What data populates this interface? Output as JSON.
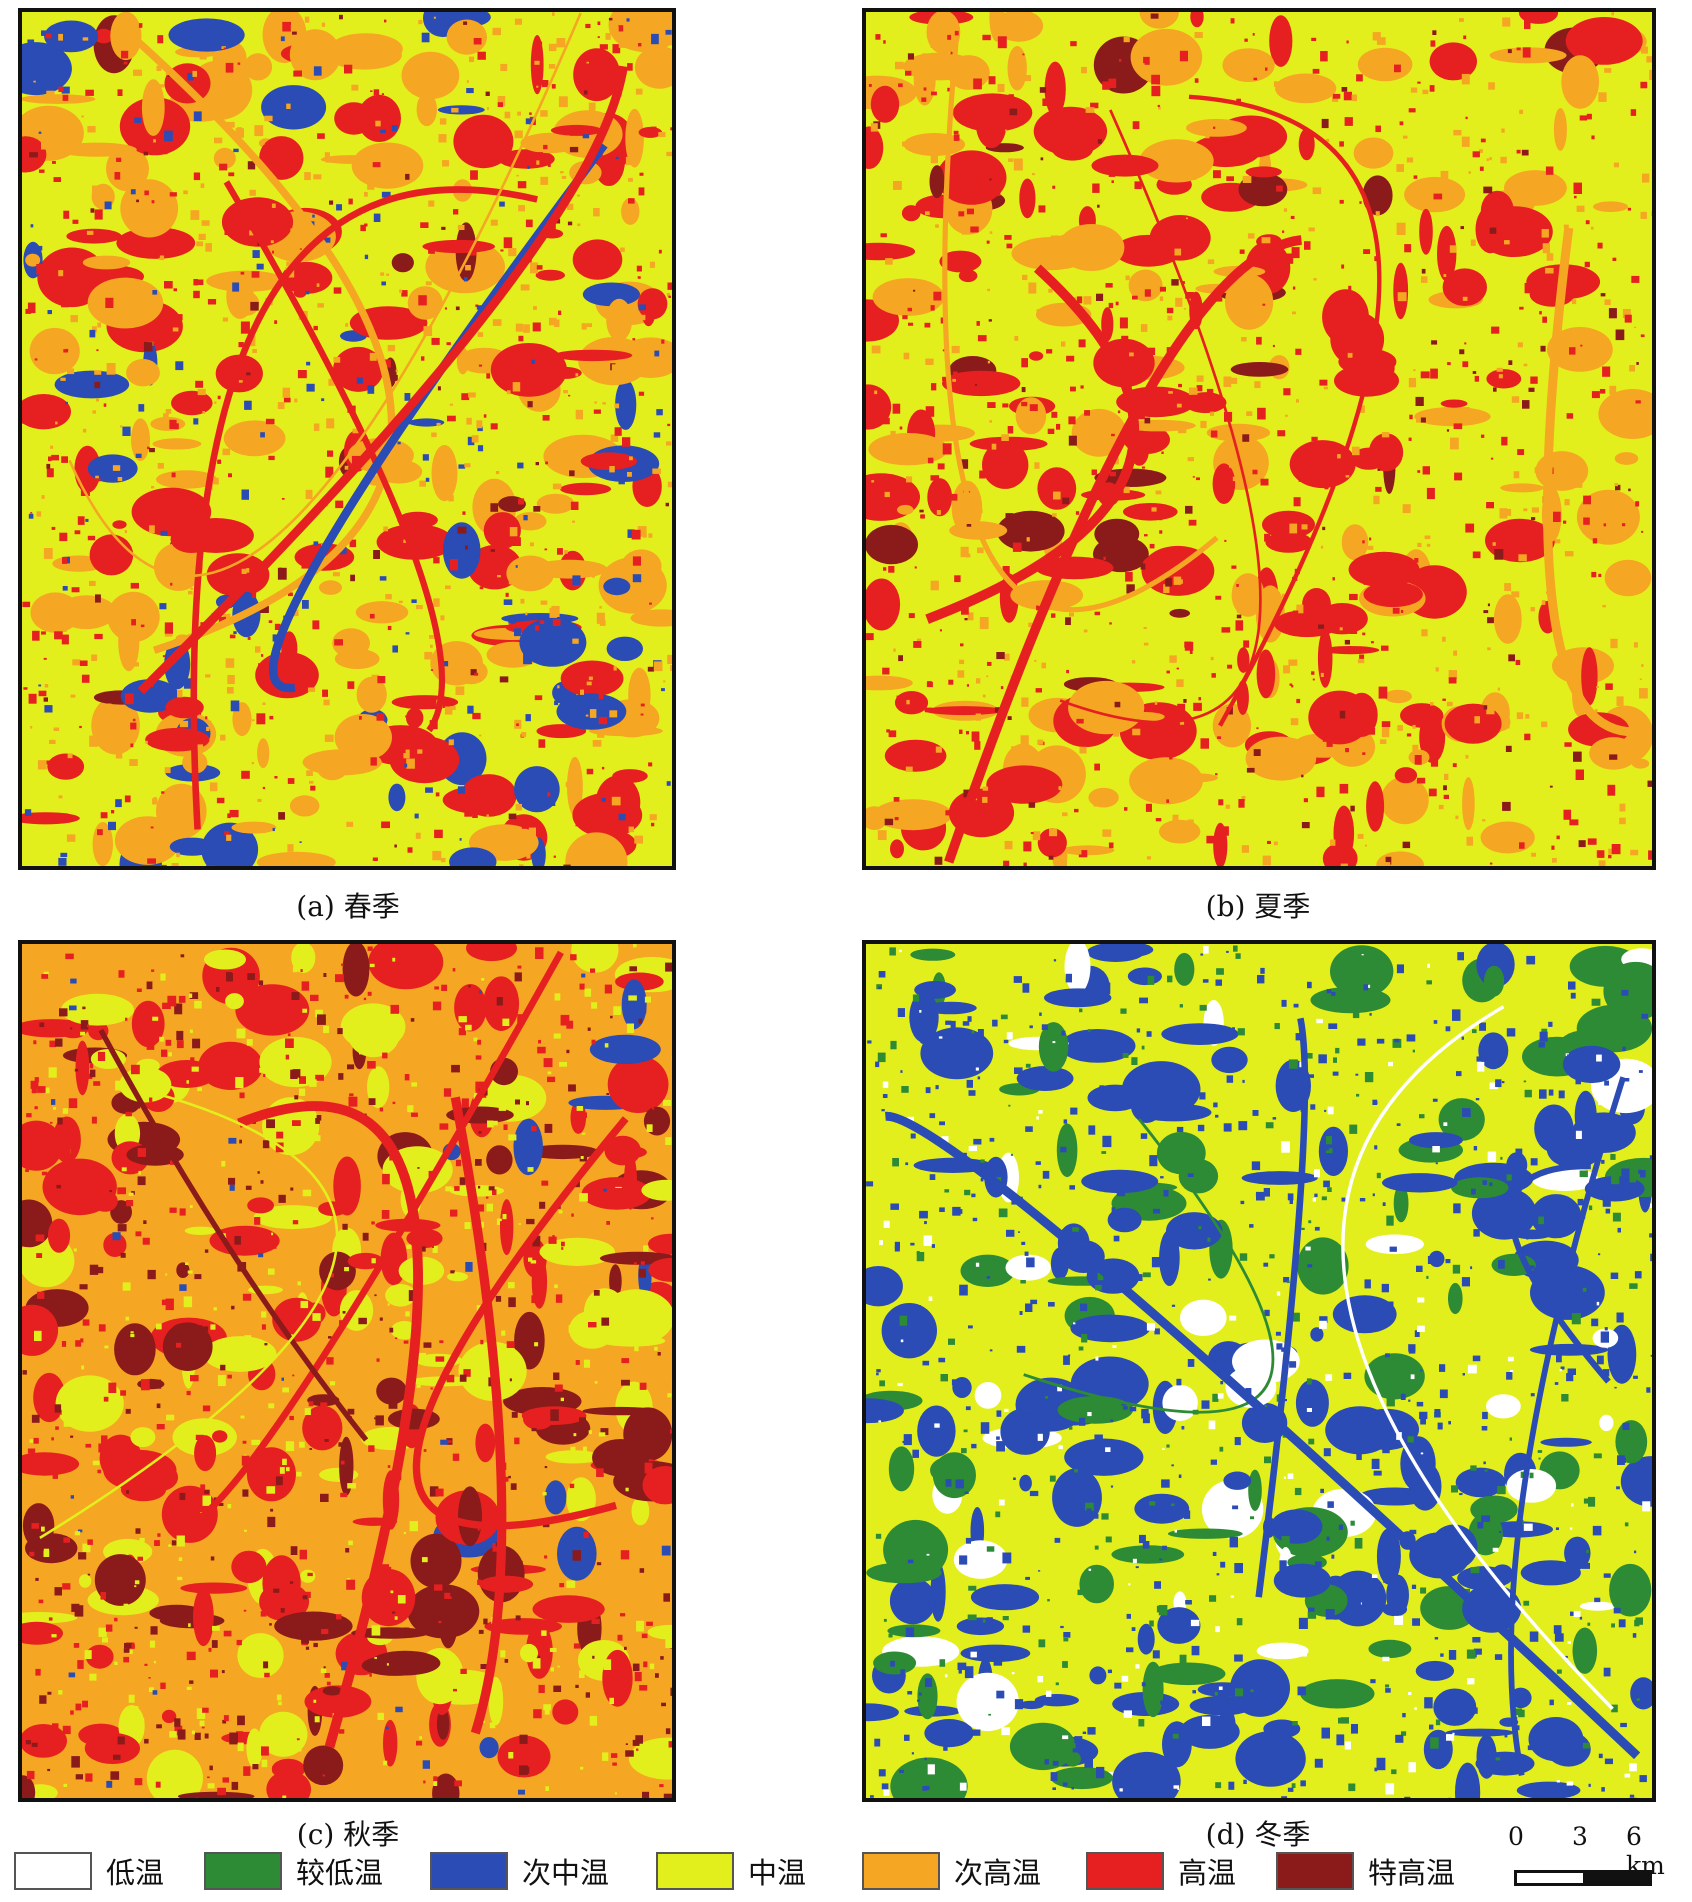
{
  "palette": {
    "low": "#ffffff",
    "lower": "#2e8b35",
    "sub_mid": "#2b4bb5",
    "mid": "#e3ef1c",
    "sub_high": "#f5a623",
    "high": "#e62020",
    "extra_high": "#8b1a1a"
  },
  "panels": [
    {
      "id": "a",
      "caption": "(a) 春季",
      "base": "mid",
      "blobs": [
        "sub_high",
        "high",
        "sub_mid",
        "extra_high"
      ],
      "weights": [
        0.45,
        0.32,
        0.18,
        0.05
      ]
    },
    {
      "id": "b",
      "caption": "(b) 夏季",
      "base": "mid",
      "blobs": [
        "sub_high",
        "high",
        "extra_high"
      ],
      "weights": [
        0.4,
        0.5,
        0.1
      ]
    },
    {
      "id": "c",
      "caption": "(c) 秋季",
      "base": "sub_high",
      "blobs": [
        "mid",
        "high",
        "extra_high",
        "sub_mid"
      ],
      "weights": [
        0.3,
        0.4,
        0.27,
        0.03
      ]
    },
    {
      "id": "d",
      "caption": "(d) 冬季",
      "base": "mid",
      "blobs": [
        "sub_mid",
        "lower",
        "low"
      ],
      "weights": [
        0.6,
        0.25,
        0.15
      ]
    }
  ],
  "legend": [
    {
      "key": "low",
      "label": "低温"
    },
    {
      "key": "lower",
      "label": "较低温"
    },
    {
      "key": "sub_mid",
      "label": "次中温"
    },
    {
      "key": "mid",
      "label": "中温"
    },
    {
      "key": "sub_high",
      "label": "次高温"
    },
    {
      "key": "high",
      "label": "高温"
    },
    {
      "key": "extra_high",
      "label": "特高温"
    }
  ],
  "scale": {
    "ticks": [
      "0",
      "3",
      "6 km"
    ]
  }
}
